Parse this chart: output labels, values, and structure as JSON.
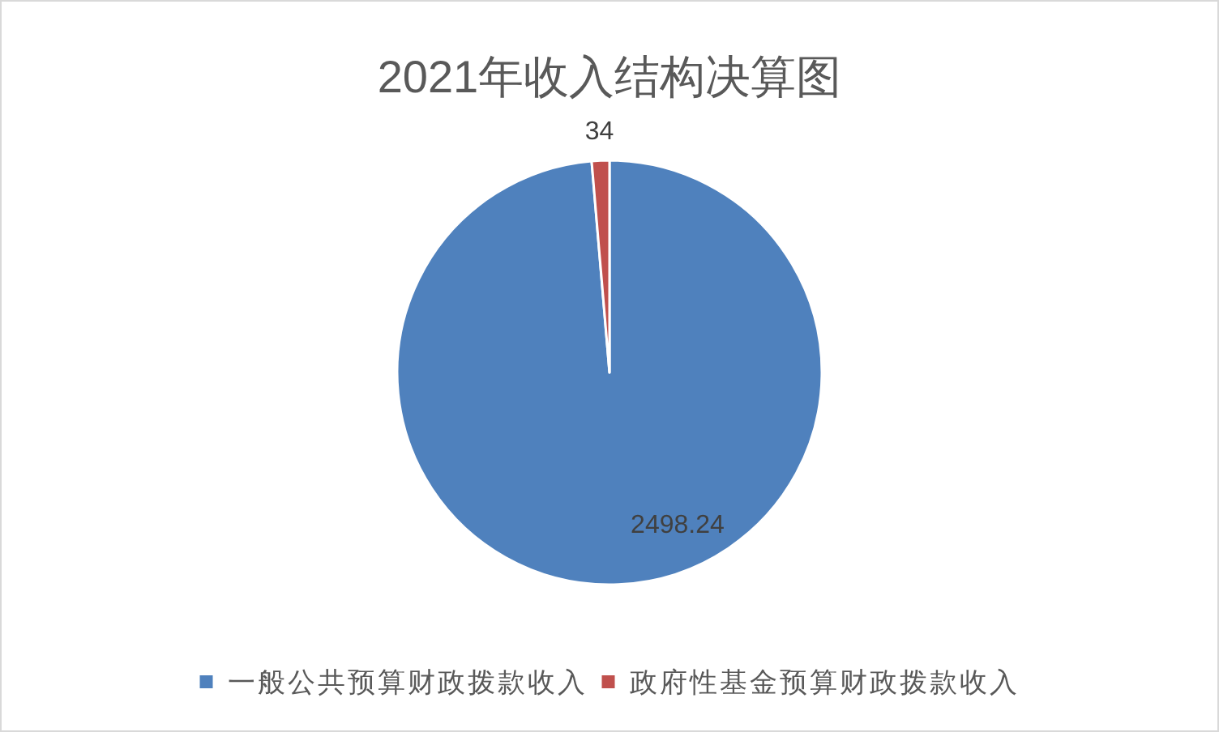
{
  "chart_data": {
    "type": "pie",
    "title": "2021年收入结构决算图",
    "categories": [
      "一般公共预算财政拨款收入",
      "政府性基金预算财政拨款收入"
    ],
    "values": [
      2498.24,
      34
    ],
    "colors": [
      "#4f81bd",
      "#c0504d"
    ],
    "data_labels": true,
    "legend": "bottom"
  }
}
